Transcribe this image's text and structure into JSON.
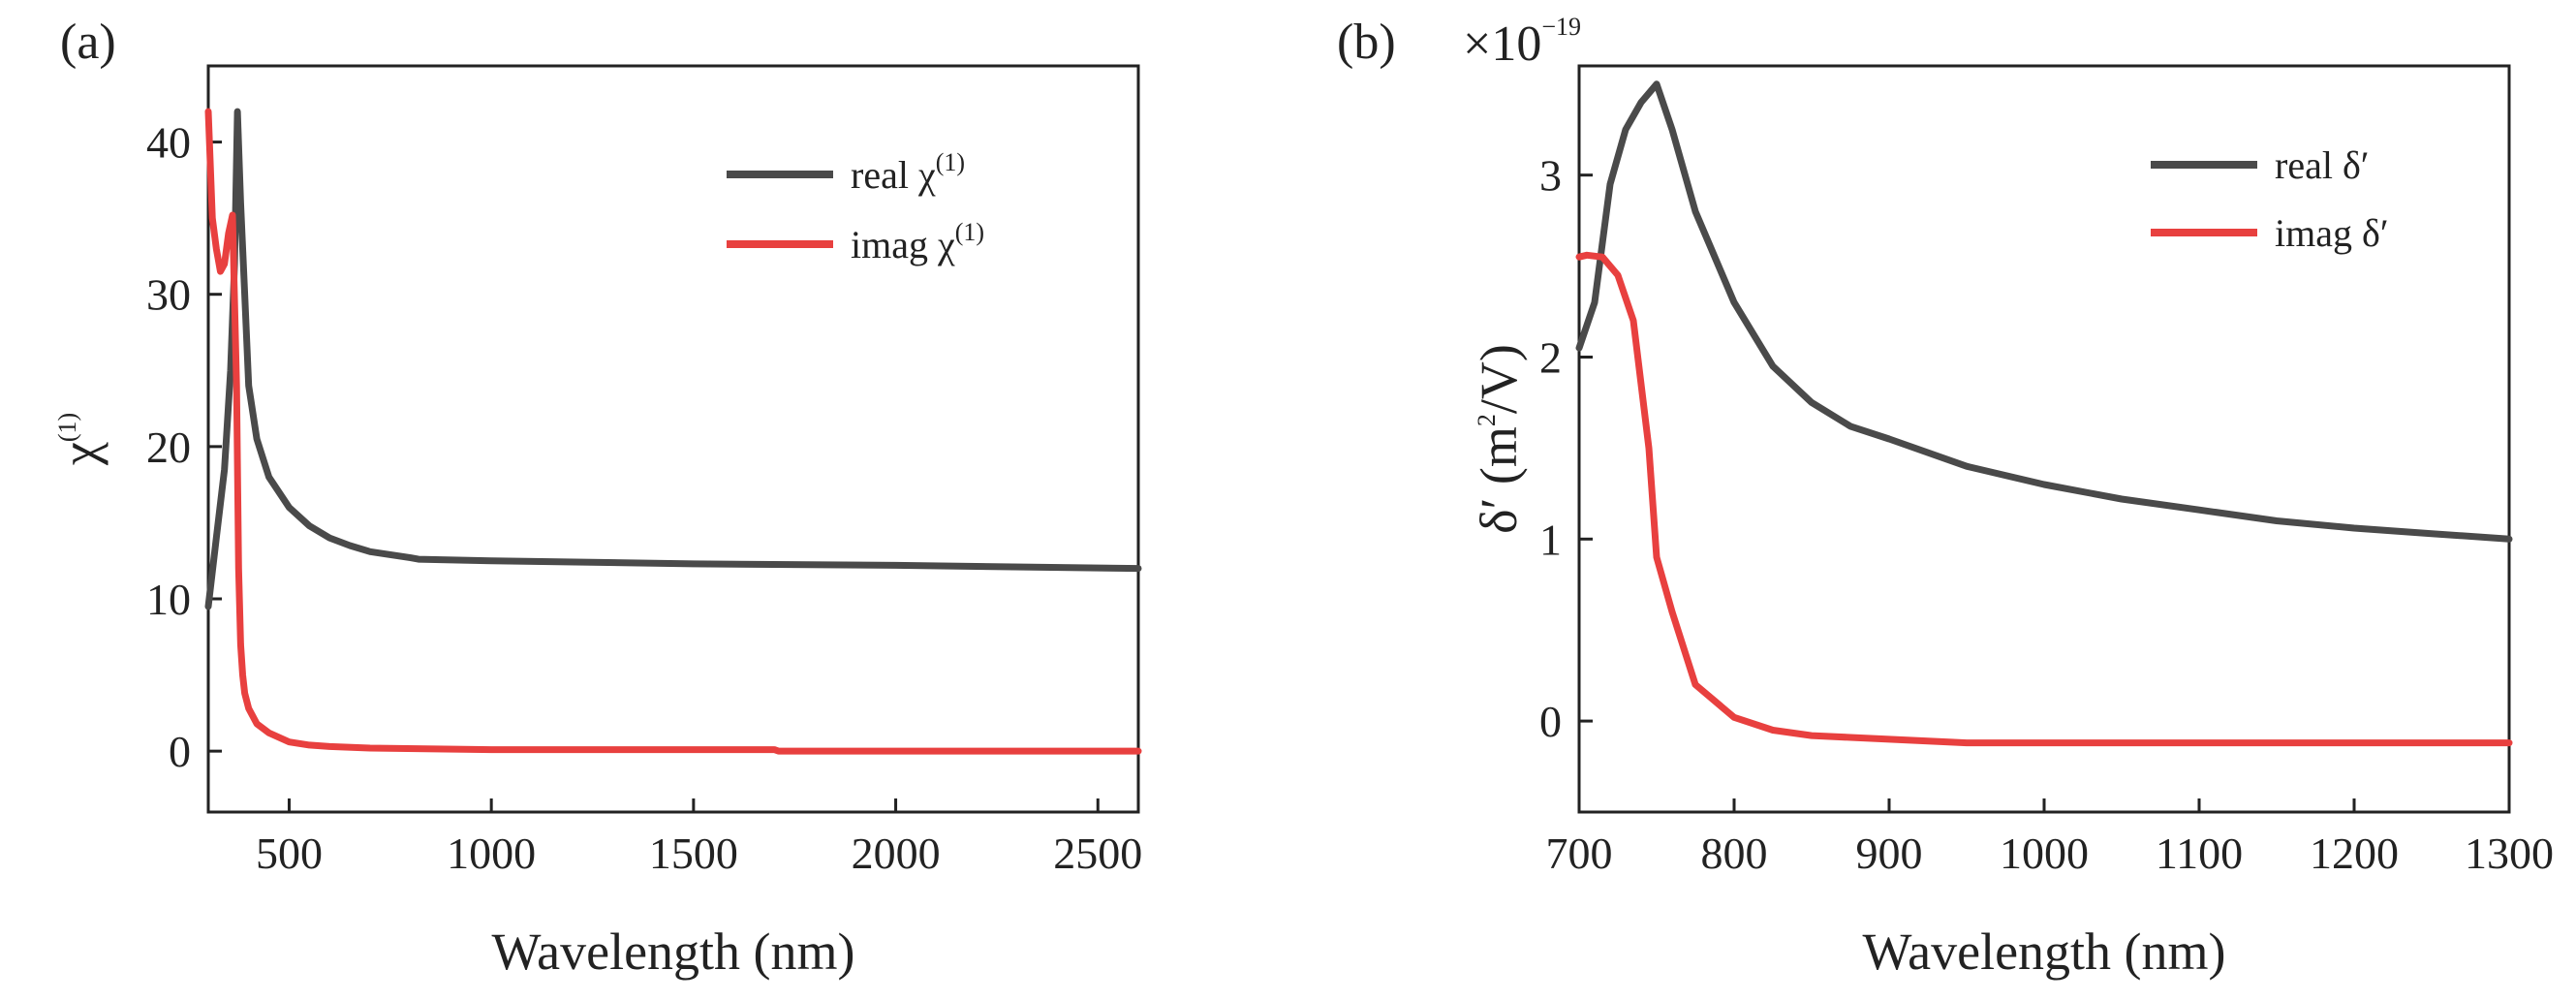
{
  "chart_data": [
    {
      "type": "line",
      "panel_label": "(a)",
      "xlabel": "Wavelength (nm)",
      "ylabel": {
        "base": "χ",
        "sup": "(1)"
      },
      "xlim": [
        300,
        2600
      ],
      "ylim": [
        -4,
        45
      ],
      "xticks": [
        500,
        1000,
        1500,
        2000,
        2500
      ],
      "yticks": [
        0,
        10,
        20,
        30,
        40
      ],
      "legend": {
        "position": "top-right"
      },
      "series": [
        {
          "name": "real χ(1)",
          "label_base": "real χ",
          "label_sup": "(1)",
          "color": "#4a4a4a",
          "x": [
            300,
            320,
            340,
            355,
            365,
            372,
            380,
            390,
            400,
            420,
            450,
            500,
            550,
            600,
            650,
            700,
            750,
            800,
            820,
            1000,
            1500,
            2000,
            2600
          ],
          "y": [
            9.5,
            14,
            18.5,
            25,
            32,
            42,
            36,
            30,
            24,
            20.5,
            18,
            16,
            14.8,
            14,
            13.5,
            13.1,
            12.9,
            12.7,
            12.6,
            12.5,
            12.3,
            12.2,
            12.0
          ]
        },
        {
          "name": "imag χ(1)",
          "label_base": "imag χ",
          "label_sup": "(1)",
          "color": "#e8403f",
          "x": [
            300,
            310,
            320,
            330,
            340,
            350,
            360,
            370,
            375,
            380,
            385,
            390,
            400,
            420,
            450,
            500,
            550,
            600,
            700,
            1000,
            1700,
            1710,
            2000,
            2600
          ],
          "y": [
            42,
            35,
            33,
            31.5,
            32,
            34,
            35.2,
            24,
            12,
            7,
            5,
            3.8,
            2.8,
            1.8,
            1.2,
            0.6,
            0.4,
            0.3,
            0.2,
            0.1,
            0.1,
            0.0,
            0.0,
            0.0
          ]
        }
      ]
    },
    {
      "type": "line",
      "panel_label": "(b)",
      "xlabel": "Wavelength (nm)",
      "ylabel": {
        "base": "δ′ (m",
        "sup": "2",
        "tail": "/V)"
      },
      "exponent_label": {
        "base": "×10",
        "sup": "−19"
      },
      "xlim": [
        700,
        1300
      ],
      "ylim": [
        -0.5,
        3.6
      ],
      "xticks": [
        700,
        800,
        900,
        1000,
        1100,
        1200,
        1300
      ],
      "yticks": [
        0,
        1,
        2,
        3
      ],
      "legend": {
        "position": "top-right"
      },
      "series": [
        {
          "name": "real δ′",
          "color": "#4a4a4a",
          "x": [
            700,
            710,
            720,
            730,
            740,
            750,
            760,
            775,
            800,
            825,
            850,
            875,
            900,
            950,
            1000,
            1050,
            1100,
            1150,
            1200,
            1250,
            1300
          ],
          "y": [
            2.05,
            2.3,
            2.95,
            3.25,
            3.4,
            3.5,
            3.25,
            2.8,
            2.3,
            1.95,
            1.75,
            1.62,
            1.55,
            1.4,
            1.3,
            1.22,
            1.16,
            1.1,
            1.06,
            1.03,
            1.0
          ]
        },
        {
          "name": "imag δ′",
          "color": "#e8403f",
          "x": [
            700,
            705,
            715,
            725,
            735,
            745,
            750,
            760,
            775,
            800,
            825,
            850,
            875,
            900,
            950,
            1000,
            1100,
            1200,
            1300
          ],
          "y": [
            2.55,
            2.56,
            2.55,
            2.45,
            2.2,
            1.5,
            0.9,
            0.6,
            0.2,
            0.02,
            -0.05,
            -0.08,
            -0.09,
            -0.1,
            -0.12,
            -0.12,
            -0.12,
            -0.12,
            -0.12
          ]
        }
      ]
    }
  ]
}
